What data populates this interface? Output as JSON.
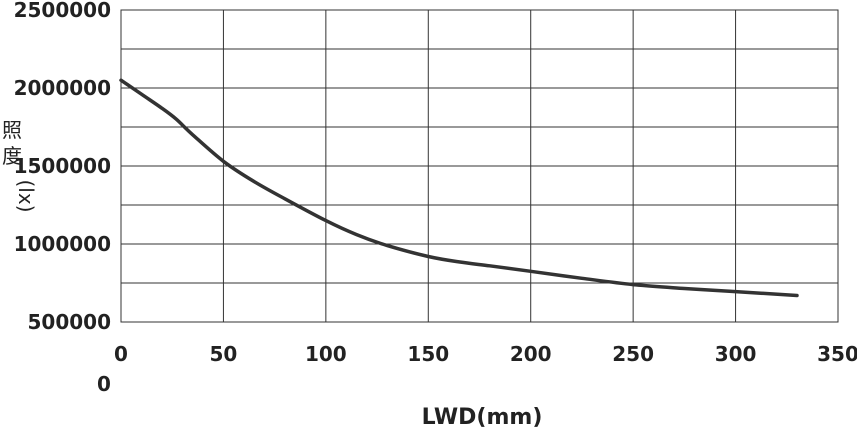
{
  "chart_data": {
    "type": "line",
    "xlabel": "LWD(mm)",
    "ylabel_chars": [
      "照",
      "度"
    ],
    "ylabel_unit": "(lx)",
    "extra_label": "0",
    "xlim": [
      0,
      350
    ],
    "ylim": [
      500000,
      2500000
    ],
    "x_ticks": [
      "0",
      "50",
      "100",
      "150",
      "200",
      "250",
      "300",
      "350"
    ],
    "y_ticks": [
      "2500000",
      "2000000",
      "1500000",
      "1000000",
      "500000"
    ],
    "grid": true,
    "line_color": "#333333",
    "series": [
      {
        "x": [
          0,
          10,
          20,
          27,
          35,
          50,
          65,
          80,
          100,
          115,
          130,
          150,
          165,
          180,
          200,
          225,
          250,
          275,
          300,
          330
        ],
        "y": [
          2050000,
          1960000,
          1870000,
          1800000,
          1700000,
          1530000,
          1400000,
          1290000,
          1150000,
          1060000,
          990000,
          920000,
          885000,
          860000,
          825000,
          780000,
          740000,
          715000,
          695000,
          670000
        ]
      }
    ]
  }
}
